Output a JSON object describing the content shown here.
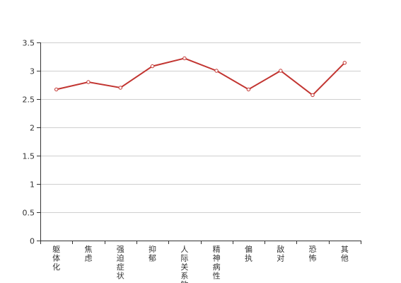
{
  "chart_data": {
    "type": "line",
    "categories": [
      "躯体化",
      "焦虑",
      "强迫症状",
      "抑郁",
      "人际关系敏",
      "精神病性",
      "偏执",
      "敌对",
      "恐怖",
      "其他"
    ],
    "values": [
      2.67,
      2.8,
      2.7,
      3.08,
      3.22,
      3.0,
      2.67,
      3.0,
      2.57,
      3.14
    ],
    "ylim": [
      0,
      3.5
    ],
    "yticks": [
      0,
      0.5,
      1,
      1.5,
      2,
      2.5,
      3,
      3.5
    ],
    "ytick_labels": [
      "0",
      "0.5",
      "1",
      "1.5",
      "2",
      "2.5",
      "3",
      "3.5"
    ],
    "grid": true,
    "line_color": "#c23531",
    "title": "",
    "xlabel": "",
    "ylabel": ""
  }
}
